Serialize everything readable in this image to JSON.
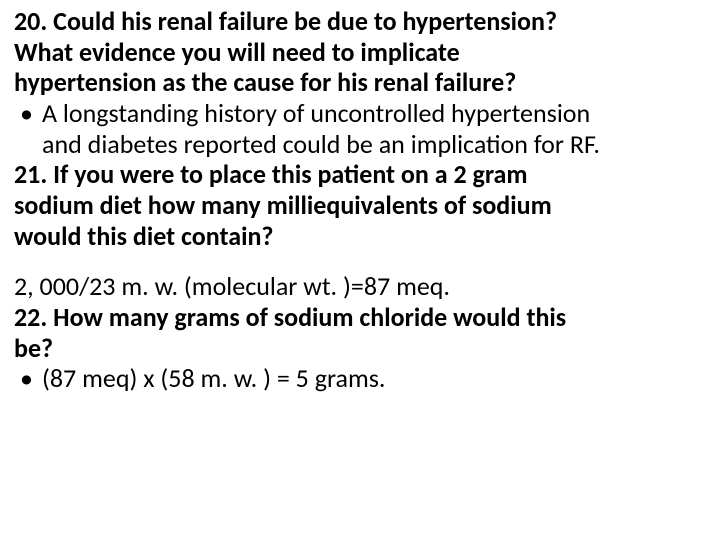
{
  "font": {
    "family": "Calibri, 'Segoe UI', Arial, sans-serif",
    "size_pt": 26,
    "line_height": 1.18,
    "bold_weight": 700
  },
  "colors": {
    "background": "#ffffff",
    "text": "#000000"
  },
  "q20": {
    "question_lines": [
      "20. Could his renal failure be due to hypertension?",
      "What evidence you will need to implicate",
      "hypertension as the cause for his renal failure?"
    ],
    "bullet_marker": "•",
    "bullet_text_lines": [
      "A longstanding history of uncontrolled hypertension",
      "and diabetes reported could be an implication for RF."
    ]
  },
  "q21": {
    "question_lines": [
      "21. If you were to place this patient on a 2 gram",
      "sodium diet how many milliequivalents of sodium",
      "would this diet contain?"
    ],
    "answer_line": "2, 000/23 m. w. (molecular wt. )=87 meq."
  },
  "q22": {
    "question_lines": [
      "22. How many grams of sodium chloride would this",
      "be?"
    ],
    "bullet_marker": "•",
    "bullet_text": "(87 meq) x (58 m. w. ) = 5 grams."
  }
}
